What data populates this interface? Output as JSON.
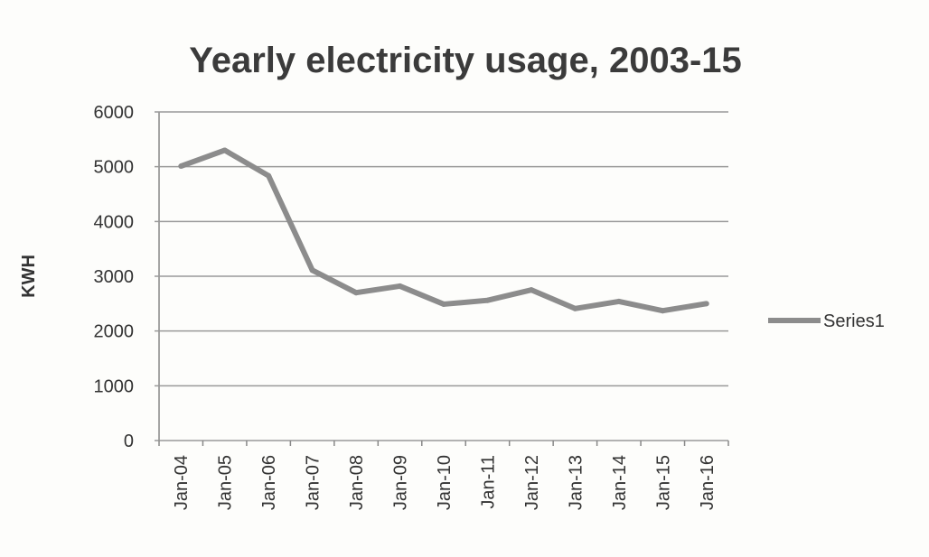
{
  "chart_data": {
    "type": "line",
    "title": "Yearly electricity usage, 2003-15",
    "xlabel": "",
    "ylabel": "KWH",
    "ylim": [
      0,
      6000
    ],
    "yticks": [
      "0",
      "1000",
      "2000",
      "3000",
      "4000",
      "5000",
      "6000"
    ],
    "grid": true,
    "legend_placement": "right",
    "categories": [
      "Jan-04",
      "Jan-05",
      "Jan-06",
      "Jan-07",
      "Jan-08",
      "Jan-09",
      "Jan-10",
      "Jan-11",
      "Jan-12",
      "Jan-13",
      "Jan-14",
      "Jan-15",
      "Jan-16"
    ],
    "series": [
      {
        "name": "Series1",
        "color": "#8c8c8c",
        "values": [
          5010,
          5300,
          4835,
          3110,
          2700,
          2820,
          2490,
          2560,
          2750,
          2410,
          2540,
          2370,
          2500
        ]
      }
    ]
  }
}
